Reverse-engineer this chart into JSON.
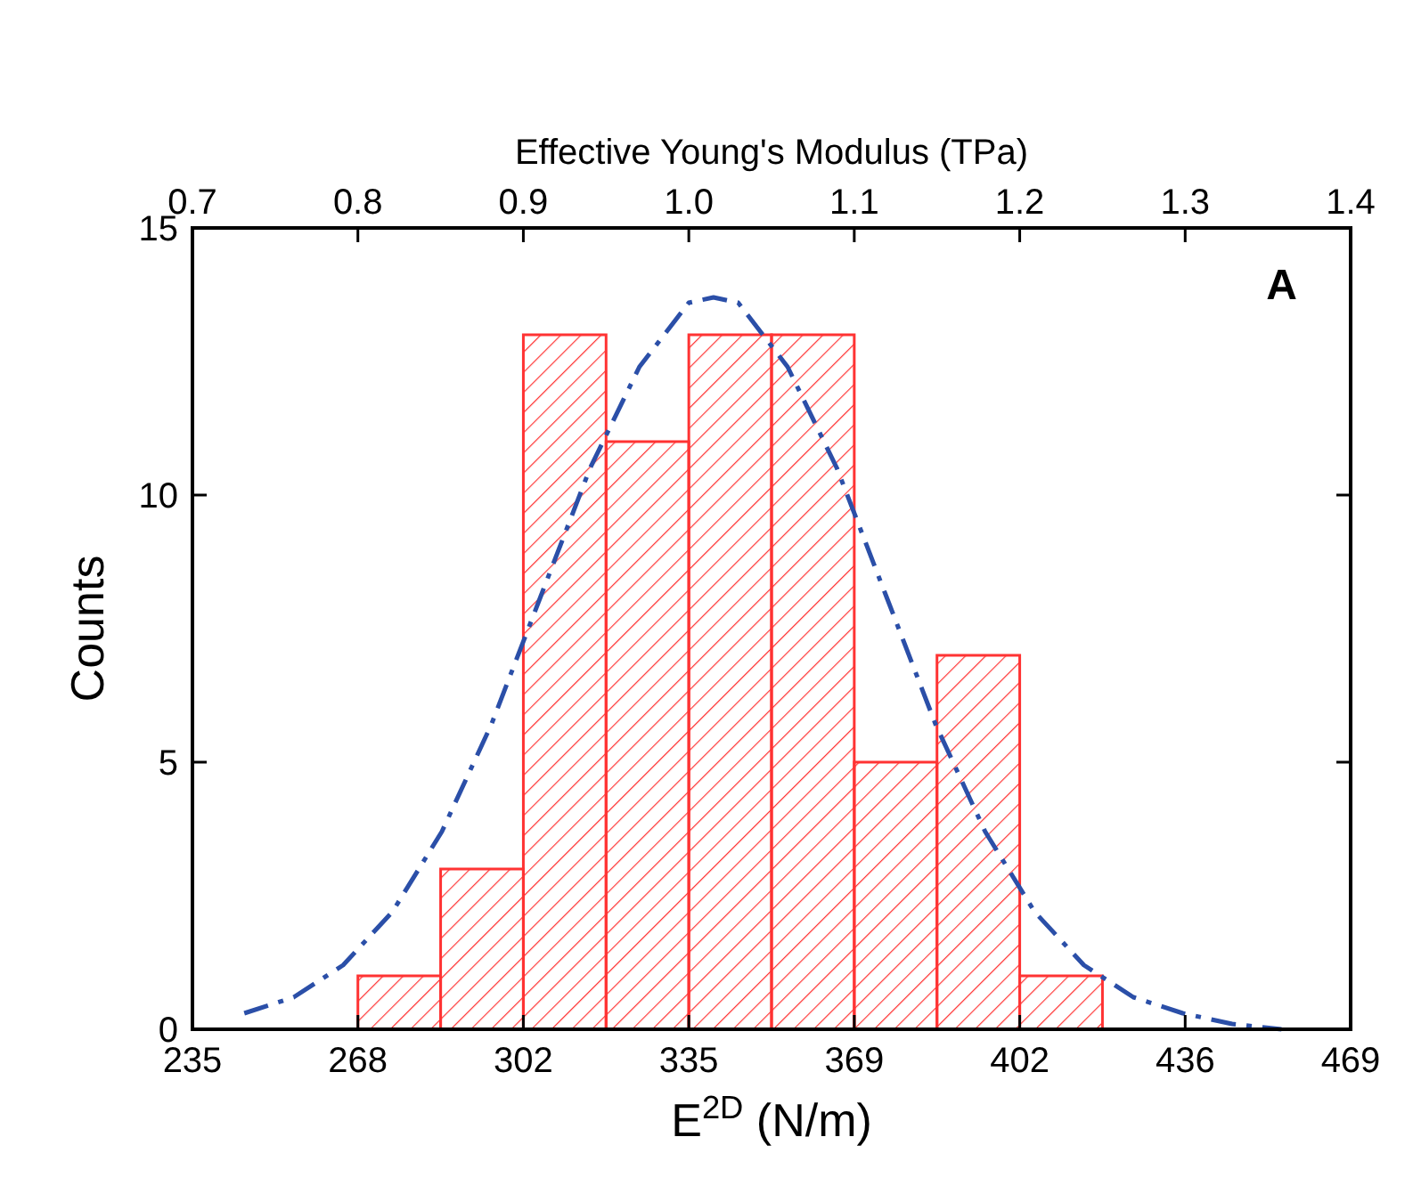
{
  "chart_data": {
    "type": "histogram",
    "xlabel": "E$^{2D}$ (N/m)",
    "ylabel": "Counts",
    "x2label": "Effective Young's Modulus (TPa)",
    "xlim": [
      234.5,
      469
    ],
    "xticks": [
      {
        "value": 234.5,
        "label": "235"
      },
      268,
      {
        "value": 301.5,
        "label": "302"
      },
      335,
      {
        "value": 368.5,
        "label": "369"
      },
      402,
      {
        "value": 435.5,
        "label": "436"
      },
      469
    ],
    "x2lim": [
      0.7,
      1.4
    ],
    "x2ticks": [
      0.7,
      0.8,
      0.9,
      {
        "value": 1.0,
        "label": "1.0"
      },
      1.1,
      1.2,
      1.3,
      1.4
    ],
    "ylim": [
      0,
      15
    ],
    "yticks": [
      0,
      5,
      10,
      15
    ],
    "annotations": [
      "A"
    ],
    "series": [
      {
        "color": "#ff3333",
        "bins": [
          268,
          284.75,
          301.5,
          318.25,
          335,
          351.75,
          368.5,
          385.25,
          402,
          418.75
        ],
        "values": [
          1,
          3,
          13,
          11,
          13,
          13,
          5,
          7,
          1
        ]
      },
      {
        "type": "line",
        "color": "#2b4fa8",
        "line_style": "dashed",
        "x": [
          245,
          255,
          265,
          275,
          285,
          295,
          305,
          315,
          325,
          335,
          340,
          345,
          355,
          365,
          375,
          385,
          395,
          405,
          415,
          425,
          435,
          445,
          455
        ],
        "values": [
          0.3,
          0.6,
          1.2,
          2.2,
          3.7,
          5.7,
          8.1,
          10.5,
          12.4,
          13.6,
          13.7,
          13.6,
          12.4,
          10.5,
          8.1,
          5.7,
          3.7,
          2.2,
          1.2,
          0.6,
          0.3,
          0.1,
          0.0
        ]
      }
    ]
  }
}
